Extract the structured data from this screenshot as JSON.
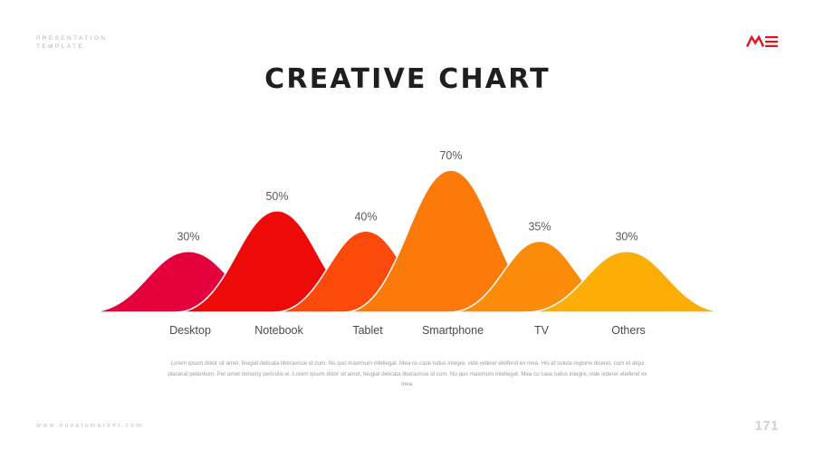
{
  "header": {
    "line1": "PRESENTATION",
    "line2": "TEMPLATE"
  },
  "logo": {
    "icon": "me-logo-icon",
    "color": "#e2131f"
  },
  "title": "CREATIVE CHART",
  "chart_data": {
    "type": "area",
    "categories": [
      "Desktop",
      "Notebook",
      "Tablet",
      "Smartphone",
      "TV",
      "Others"
    ],
    "values": [
      30,
      50,
      40,
      70,
      35,
      30
    ],
    "value_labels": [
      "30%",
      "50%",
      "40%",
      "70%",
      "35%",
      "30%"
    ],
    "colors": [
      "#e4003a",
      "#ef0a0a",
      "#fb4a0c",
      "#fb7a0a",
      "#fb8c0a",
      "#fdae06"
    ],
    "ylim": [
      0,
      70
    ],
    "grid": false,
    "title": "",
    "xlabel": "",
    "ylabel": ""
  },
  "description": "Lorem ipsum dolor sit amet, feugiat delicata liberavisse id cum. No quo maximum intellegat. Mea cu case ludus integre, vide viderer eleifend ex mea. His at soluta regione diceret, cum et atqui placerat petentium. Per amet nonumy periculis ei. Lorem ipsum dolor sit amet, feugiat delicata liberavisse id cum. No quo maximum intellegat. Mea cu case ludus integre, vide viderer eleifend ex mea.",
  "footer": {
    "url": "www.envatomarket.com",
    "page_number": "171"
  }
}
